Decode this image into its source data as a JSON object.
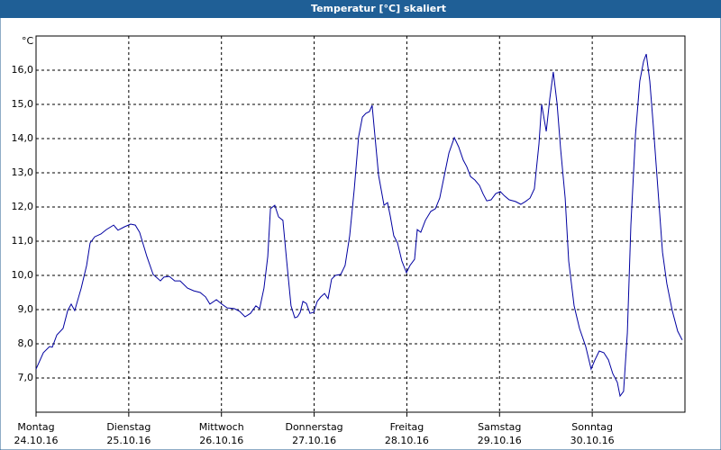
{
  "chart_data": {
    "type": "line",
    "title": "Temperatur [°C] skaliert",
    "y_unit": "°C",
    "x": [
      0,
      1.9,
      3.5,
      4.2,
      5.4,
      7,
      8.2,
      9.1,
      10,
      11.7,
      13.1,
      14,
      15.2,
      16.8,
      18.2,
      20.1,
      21.2,
      22.9,
      24.5,
      25.7,
      26.8,
      28.7,
      30.3,
      32.2,
      33.1,
      34.5,
      35.9,
      37.3,
      39.2,
      40.8,
      42.5,
      43.9,
      45,
      46.7,
      48.1,
      49.5,
      51.3,
      52.7,
      54.1,
      55.5,
      56.9,
      57.9,
      59,
      60,
      60.7,
      61.8,
      62.8,
      63.9,
      64.9,
      66,
      67,
      67.7,
      68.4,
      69.1,
      70,
      70.9,
      71.9,
      72.8,
      73.7,
      74.7,
      75.6,
      76.5,
      77.5,
      78.9,
      80,
      81.2,
      82.4,
      83.5,
      84.5,
      85.4,
      86.3,
      87,
      87.7,
      88.7,
      90.1,
      91,
      91.7,
      92.6,
      93.6,
      94.7,
      95.9,
      96.8,
      98,
      98.7,
      99.6,
      100.8,
      102.2,
      103.4,
      104.5,
      105.7,
      106.9,
      108.3,
      109.4,
      110.6,
      111.5,
      112.5,
      113.6,
      114.8,
      115.7,
      116.7,
      117.8,
      119,
      120.2,
      121.3,
      122.5,
      124.1,
      125.5,
      126.7,
      127.9,
      129,
      130.2,
      130.9,
      132.1,
      133,
      133.9,
      134.9,
      135.8,
      137,
      137.9,
      139.3,
      140.7,
      142.3,
      143.7,
      144.7,
      145.8,
      147,
      148.2,
      149.3,
      150.5,
      151.2,
      152.1,
      153.1,
      154,
      155.2,
      156.3,
      157.3,
      158,
      158.9,
      159.8,
      161,
      162.2,
      163.3,
      164.7,
      166.1,
      167.3
    ],
    "values": [
      7.26,
      7.74,
      7.92,
      7.9,
      8.26,
      8.45,
      8.97,
      9.16,
      8.97,
      9.63,
      10.29,
      10.95,
      11.13,
      11.21,
      11.34,
      11.47,
      11.32,
      11.42,
      11.5,
      11.47,
      11.26,
      10.55,
      10.03,
      9.84,
      9.95,
      9.97,
      9.84,
      9.84,
      9.63,
      9.55,
      9.5,
      9.37,
      9.16,
      9.29,
      9.16,
      9.05,
      9.03,
      8.95,
      8.79,
      8.89,
      9.11,
      9.03,
      9.63,
      10.55,
      11.95,
      12.05,
      11.71,
      11.61,
      10.42,
      9.11,
      8.76,
      8.79,
      8.92,
      9.24,
      9.18,
      8.89,
      8.92,
      9.24,
      9.37,
      9.47,
      9.32,
      9.89,
      10.0,
      10.03,
      10.29,
      11.16,
      12.53,
      14.05,
      14.63,
      14.74,
      14.79,
      14.97,
      14.11,
      12.92,
      12.05,
      12.13,
      11.74,
      11.16,
      10.95,
      10.42,
      10.08,
      10.29,
      10.47,
      11.34,
      11.26,
      11.61,
      11.87,
      11.95,
      12.26,
      12.92,
      13.58,
      14.03,
      13.76,
      13.37,
      13.18,
      12.89,
      12.79,
      12.63,
      12.39,
      12.18,
      12.21,
      12.39,
      12.45,
      12.32,
      12.21,
      12.16,
      12.08,
      12.16,
      12.26,
      12.53,
      13.84,
      15.0,
      14.21,
      15.16,
      15.95,
      15.03,
      13.71,
      12.26,
      10.42,
      9.11,
      8.45,
      7.92,
      7.26,
      7.53,
      7.79,
      7.74,
      7.53,
      7.13,
      6.87,
      6.47,
      6.61,
      8.32,
      11.47,
      14.11,
      15.68,
      16.26,
      16.47,
      15.68,
      14.37,
      12.53,
      10.68,
      9.76,
      8.97,
      8.37,
      8.11
    ],
    "color": "#0000a0",
    "xlim": [
      0,
      168
    ],
    "xticks": [
      {
        "value": 0,
        "label": "Montag"
      },
      {
        "value": 24,
        "label": "Dienstag"
      },
      {
        "value": 48,
        "label": "Mittwoch"
      },
      {
        "value": 72,
        "label": "Donnerstag"
      },
      {
        "value": 96,
        "label": "Freitag"
      },
      {
        "value": 120,
        "label": "Samstag"
      },
      {
        "value": 144,
        "label": "Sonntag"
      }
    ],
    "xtick_dates": [
      "24.10.16",
      "25.10.16",
      "26.10.16",
      "27.10.16",
      "28.10.16",
      "29.10.16",
      "30.10.16"
    ],
    "ylim": [
      6,
      17
    ],
    "yticks": [
      {
        "value": 7,
        "label": "7,0"
      },
      {
        "value": 8,
        "label": "8,0"
      },
      {
        "value": 9,
        "label": "9,0"
      },
      {
        "value": 10,
        "label": "10,0"
      },
      {
        "value": 11,
        "label": "11,0"
      },
      {
        "value": 12,
        "label": "12,0"
      },
      {
        "value": 13,
        "label": "13,0"
      },
      {
        "value": 14,
        "label": "14,0"
      },
      {
        "value": 15,
        "label": "15,0"
      },
      {
        "value": 16,
        "label": "16,0"
      }
    ],
    "grid": true
  }
}
